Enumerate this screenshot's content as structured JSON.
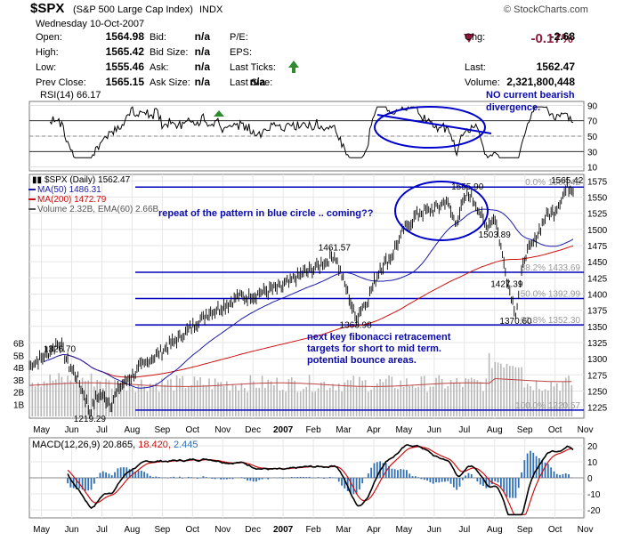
{
  "header": {
    "symbol": "$SPX",
    "name": "(S&P 500 Large Cap Index)",
    "exchange": "INDX",
    "date": "Wednesday  10-Oct-2007",
    "watermark": "© StockCharts.com",
    "change_pct": "-0.17%",
    "up_color": "#2e8b2e",
    "down_color": "#8b1a3a",
    "quote": [
      [
        {
          "label": "Open:",
          "value": "1564.98"
        },
        {
          "label": "Bid:",
          "value": "n/a"
        },
        {
          "label": "P/E:",
          "value": ""
        },
        {
          "label": "Chg:",
          "value": "-2.68"
        }
      ],
      [
        {
          "label": "High:",
          "value": "1565.42"
        },
        {
          "label": "Bid Size:",
          "value": "n/a"
        },
        {
          "label": "EPS:",
          "value": ""
        },
        {
          "label": "",
          "value": ""
        }
      ],
      [
        {
          "label": "Low:",
          "value": "1555.46"
        },
        {
          "label": "Ask:",
          "value": "n/a"
        },
        {
          "label": "Last Ticks:",
          "value": ""
        },
        {
          "label": "Last:",
          "value": "1562.47"
        }
      ],
      [
        {
          "label": "Prev Close:",
          "value": "1565.15"
        },
        {
          "label": "Ask Size:",
          "value": "n/a"
        },
        {
          "label": "Last Size:",
          "value": "n/a"
        },
        {
          "label": "Volume:",
          "value": "2,321,800,448"
        }
      ]
    ]
  },
  "chart_data": [
    {
      "type": "line",
      "panel": "rsi",
      "legend": "RSI(14) 66.17",
      "y_ticks": [
        10,
        30,
        50,
        70,
        90
      ],
      "ylim": [
        5,
        95
      ],
      "ref_lines": [
        30,
        70
      ],
      "series_color": "#000000",
      "annotation": "NO  current bearish divergence."
    },
    {
      "type": "line",
      "panel": "price",
      "legend": [
        {
          "text": "$SPX (Daily) 1562.47",
          "color": "#000000"
        },
        {
          "text": "MA(50) 1486.31",
          "color": "#1b1baa"
        },
        {
          "text": "MA(200) 1472.79",
          "color": "#cc1111"
        },
        {
          "text": "Volume 2.32B, EMA(60) 2.66B",
          "color": "#555555"
        }
      ],
      "y_ticks": [
        1225,
        1250,
        1275,
        1300,
        1325,
        1350,
        1375,
        1400,
        1425,
        1450,
        1475,
        1500,
        1525,
        1550,
        1575
      ],
      "ylim": [
        1208,
        1585
      ],
      "vol_ticks": [
        "1B",
        "2B",
        "3B",
        "4B",
        "5B",
        "6B"
      ],
      "vol_ylim": [
        0,
        7
      ],
      "x_labels": [
        "May",
        "Jun",
        "Jul",
        "Aug",
        "Sep",
        "Oct",
        "Nov",
        "Dec",
        "2007",
        "Feb",
        "Mar",
        "Apr",
        "May",
        "Jun",
        "Jul",
        "Aug",
        "Sep",
        "Oct",
        "Nov"
      ],
      "fib_levels": [
        {
          "label": "0.0%",
          "value": 1565.42,
          "text": "0.0% 1565.42"
        },
        {
          "label": "38.2%",
          "value": 1433.69,
          "text": "38.2% 1433.69"
        },
        {
          "label": "50.0%",
          "value": 1392.99,
          "text": "50.0% 1392.99"
        },
        {
          "label": "61.8%",
          "value": 1352.3,
          "text": "61.8% 1352.30"
        },
        {
          "label": "100.0%",
          "value": 1220.57,
          "text": "100.0% 1220.57"
        }
      ],
      "price_labels": [
        {
          "text": "1326.70",
          "t": 0.6,
          "v": 1326.7
        },
        {
          "text": "1219.29",
          "t": 1.6,
          "v": 1219.29
        },
        {
          "text": "1461.57",
          "t": 9.7,
          "v": 1461.57
        },
        {
          "text": "1363.98",
          "t": 10.4,
          "v": 1363.98
        },
        {
          "text": "1555.90",
          "t": 14.1,
          "v": 1555.9
        },
        {
          "text": "1503.89",
          "t": 15.0,
          "v": 1503.89
        },
        {
          "text": "1427.39",
          "t": 15.4,
          "v": 1427.39
        },
        {
          "text": "1370.60",
          "t": 15.7,
          "v": 1370.6
        },
        {
          "text": "1565.42",
          "t": 17.4,
          "v": 1565.42
        }
      ],
      "annotations": {
        "pattern": "repeat of the pattern in blue  circle .. coming??",
        "fib_note": [
          "next key fibonacci retracement",
          "targets for short to mid term.",
          "potential bounce areas."
        ]
      },
      "series_colors": {
        "price": "#000000",
        "ma50": "#1b1baa",
        "ma200": "#cc1111",
        "fib": "#0000bb",
        "annotation": "#0a0aaa"
      }
    },
    {
      "type": "line",
      "panel": "macd",
      "legend": {
        "label": "MACD(12,26,9)",
        "macd": "20.865",
        "signal": "18.420",
        "hist": "2.445"
      },
      "y_ticks": [
        20,
        10,
        0,
        -10,
        -20
      ],
      "ylim": [
        -25,
        25
      ],
      "x_labels": [
        "May",
        "Jun",
        "Jul",
        "Aug",
        "Sep",
        "Oct",
        "Nov",
        "Dec",
        "2007",
        "Feb",
        "Mar",
        "Apr",
        "May",
        "Jun",
        "Jul",
        "Aug",
        "Sep",
        "Oct",
        "Nov"
      ],
      "series_colors": {
        "macd": "#000000",
        "signal": "#cc1111",
        "hist": "#2f6fb5"
      }
    }
  ]
}
